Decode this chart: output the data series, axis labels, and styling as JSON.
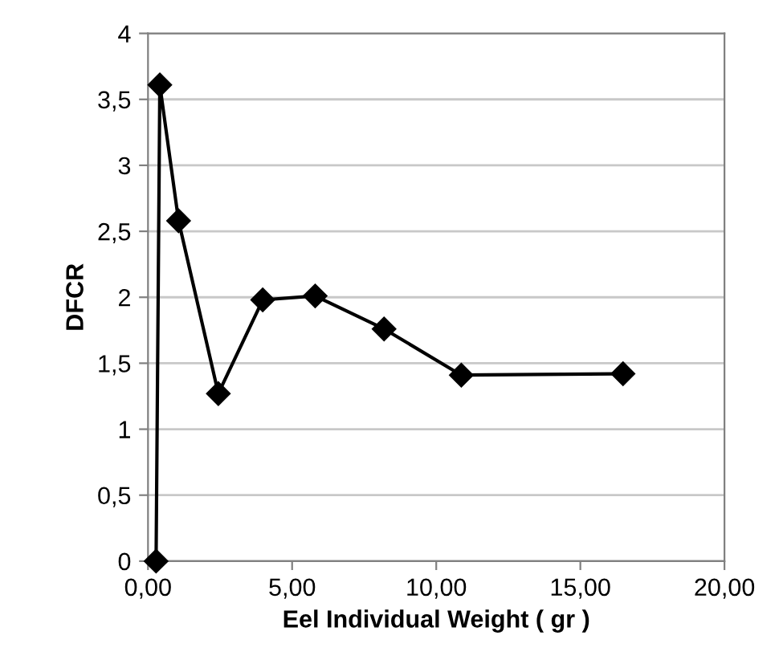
{
  "chart_data": {
    "type": "line",
    "xlabel": "Eel Individual Weight ( gr )",
    "ylabel": "DFCR",
    "x": [
      0.28,
      0.41,
      1.06,
      2.44,
      3.98,
      5.8,
      8.19,
      10.87,
      16.48
    ],
    "values": [
      0,
      3.61,
      2.58,
      1.27,
      1.98,
      2.01,
      1.76,
      1.41,
      1.42
    ],
    "color": "#000000",
    "marker": "diamond",
    "line_style": "solid",
    "grid": "y",
    "xlim": [
      0,
      20
    ],
    "xticks": [
      {
        "value": 0,
        "label": "0,00"
      },
      {
        "value": 5,
        "label": "5,00"
      },
      {
        "value": 10,
        "label": "10,00"
      },
      {
        "value": 15,
        "label": "15,00"
      },
      {
        "value": 20,
        "label": "20,00"
      }
    ],
    "ylim": [
      0,
      4
    ],
    "yticks": [
      0,
      {
        "value": 0.5,
        "label": "0,5"
      },
      1,
      {
        "value": 1.5,
        "label": "1,5"
      },
      2,
      {
        "value": 2.5,
        "label": "2,5"
      },
      3,
      {
        "value": 3.5,
        "label": "3,5"
      },
      4
    ]
  }
}
